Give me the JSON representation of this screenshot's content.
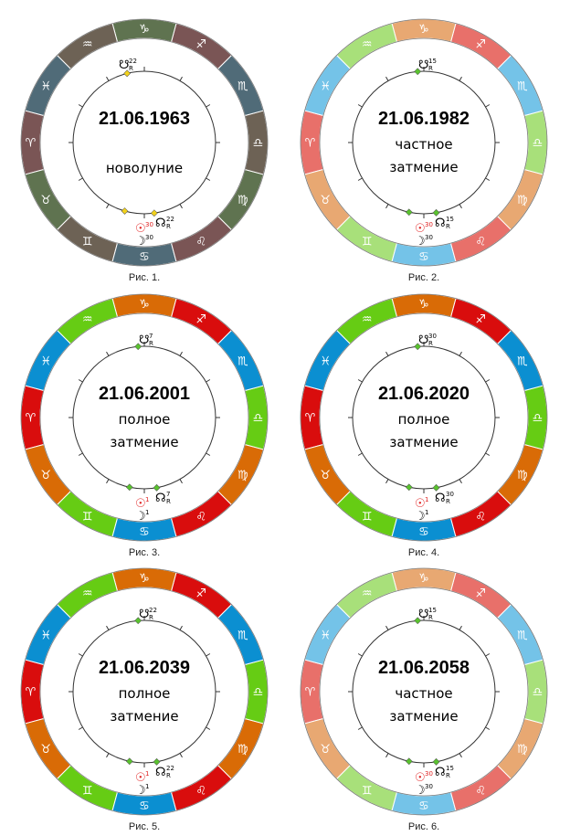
{
  "zodiac_glyphs": [
    "♈",
    "♉",
    "♊",
    "♋",
    "♌",
    "♍",
    "♎",
    "♏",
    "♐",
    "♑",
    "♒",
    "♓"
  ],
  "zodiac_names": [
    "aries",
    "taurus",
    "gemini",
    "cancer",
    "leo",
    "virgo",
    "libra",
    "scorpio",
    "sagittarius",
    "capricorn",
    "aquarius",
    "pisces"
  ],
  "glyphs": {
    "sun": "☉",
    "moon": "☽",
    "north_node": "☊",
    "south_node": "☋",
    "retro": "R"
  },
  "palettes": {
    "muted": {
      "fire": "#7a5555",
      "earth": "#5f7350",
      "air": "#6d6255",
      "water": "#506b78"
    },
    "pastel": {
      "fire": "#e8706a",
      "earth": "#e8a872",
      "air": "#a8e07a",
      "water": "#74c3e8"
    },
    "vivid": {
      "fire": "#d90d0d",
      "earth": "#d96b06",
      "air": "#66cc14",
      "water": "#0b8fd1"
    }
  },
  "charts": [
    {
      "date": "21.06.1963",
      "lines": [
        "новолуние"
      ],
      "caption": "Рис. 1.",
      "palette": "muted",
      "marker": "#f2d21c",
      "planets": {
        "south_node": "22",
        "north_node": "22",
        "sun": "30",
        "moon": "30"
      }
    },
    {
      "date": "21.06.1982",
      "lines": [
        "частное",
        "затмение"
      ],
      "caption": "Рис. 2.",
      "palette": "pastel",
      "marker": "#59c22e",
      "planets": {
        "south_node": "15",
        "north_node": "15",
        "sun": "30",
        "moon": "30"
      }
    },
    {
      "date": "21.06.2001",
      "lines": [
        "полное",
        "затмение"
      ],
      "caption": "Рис. 3.",
      "palette": "vivid",
      "marker": "#59c22e",
      "planets": {
        "south_node": "7",
        "north_node": "7",
        "sun": "1",
        "moon": "1"
      }
    },
    {
      "date": "21.06.2020",
      "lines": [
        "полное",
        "затмение"
      ],
      "caption": "Рис. 4.",
      "palette": "vivid",
      "marker": "#59c22e",
      "planets": {
        "south_node": "30",
        "north_node": "30",
        "sun": "1",
        "moon": "1"
      }
    },
    {
      "date": "21.06.2039",
      "lines": [
        "полное",
        "затмение"
      ],
      "caption": "Рис. 5.",
      "palette": "vivid",
      "marker": "#59c22e",
      "planets": {
        "south_node": "22",
        "north_node": "22",
        "sun": "1",
        "moon": "1"
      }
    },
    {
      "date": "21.06.2058",
      "lines": [
        "частное",
        "затмение"
      ],
      "caption": "Рис. 6.",
      "palette": "pastel",
      "marker": "#59c22e",
      "planets": {
        "south_node": "15",
        "north_node": "15",
        "sun": "30",
        "moon": "30"
      }
    }
  ]
}
